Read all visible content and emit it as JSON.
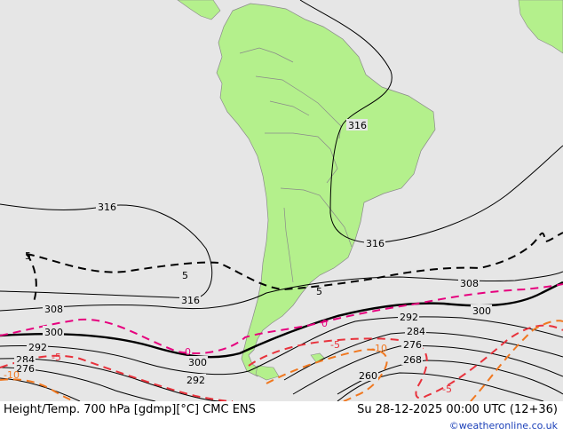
{
  "map": {
    "footer_left": "Height/Temp. 700 hPa [gdmp][°C] CMC ENS",
    "footer_right": "Su 28-12-2025 00:00 UTC (12+36)",
    "credit": "©weatheronline.co.uk",
    "colors": {
      "ocean": "#e6e6e6",
      "land": "#b4f08c",
      "height_contour": "#000000",
      "temp_0": "#e6007e",
      "temp_neg5": "#e8323c",
      "temp_neg10": "#f07820",
      "temp_pos5": "#000000"
    },
    "height_labels": [
      {
        "text": "316",
        "id": "label-316-ne"
      },
      {
        "text": "316",
        "id": "label-316-mid"
      },
      {
        "text": "316",
        "id": "label-316-left"
      },
      {
        "text": "316",
        "id": "label-316-south"
      },
      {
        "text": "308",
        "id": "label-308-left"
      },
      {
        "text": "308",
        "id": "label-308-right"
      },
      {
        "text": "300",
        "id": "label-300-left"
      },
      {
        "text": "300",
        "id": "label-300-mid"
      },
      {
        "text": "300",
        "id": "label-300-right"
      },
      {
        "text": "292",
        "id": "label-292-left"
      },
      {
        "text": "292",
        "id": "label-292-mid"
      },
      {
        "text": "292",
        "id": "label-292-right"
      },
      {
        "text": "284",
        "id": "label-284-left"
      },
      {
        "text": "284",
        "id": "label-284-right"
      },
      {
        "text": "276",
        "id": "label-276-left"
      },
      {
        "text": "276",
        "id": "label-276-right"
      },
      {
        "text": "268",
        "id": "label-268"
      },
      {
        "text": "260",
        "id": "label-260"
      }
    ],
    "temp_labels": [
      {
        "text": "5",
        "id": "label-temp-5-left"
      },
      {
        "text": "5",
        "id": "label-temp-5-mid"
      },
      {
        "text": "5",
        "id": "label-temp-5-right"
      },
      {
        "text": "0",
        "id": "label-temp-0-mid"
      },
      {
        "text": "0",
        "id": "label-temp-0-right"
      },
      {
        "text": "-5",
        "id": "label-temp-neg5-left"
      },
      {
        "text": "-5",
        "id": "label-temp-neg5-mid"
      },
      {
        "text": "-10",
        "id": "label-temp-neg10-left"
      },
      {
        "text": "-10",
        "id": "label-temp-neg10-mid"
      },
      {
        "text": "-5",
        "id": "label-temp-neg5-right"
      }
    ]
  }
}
